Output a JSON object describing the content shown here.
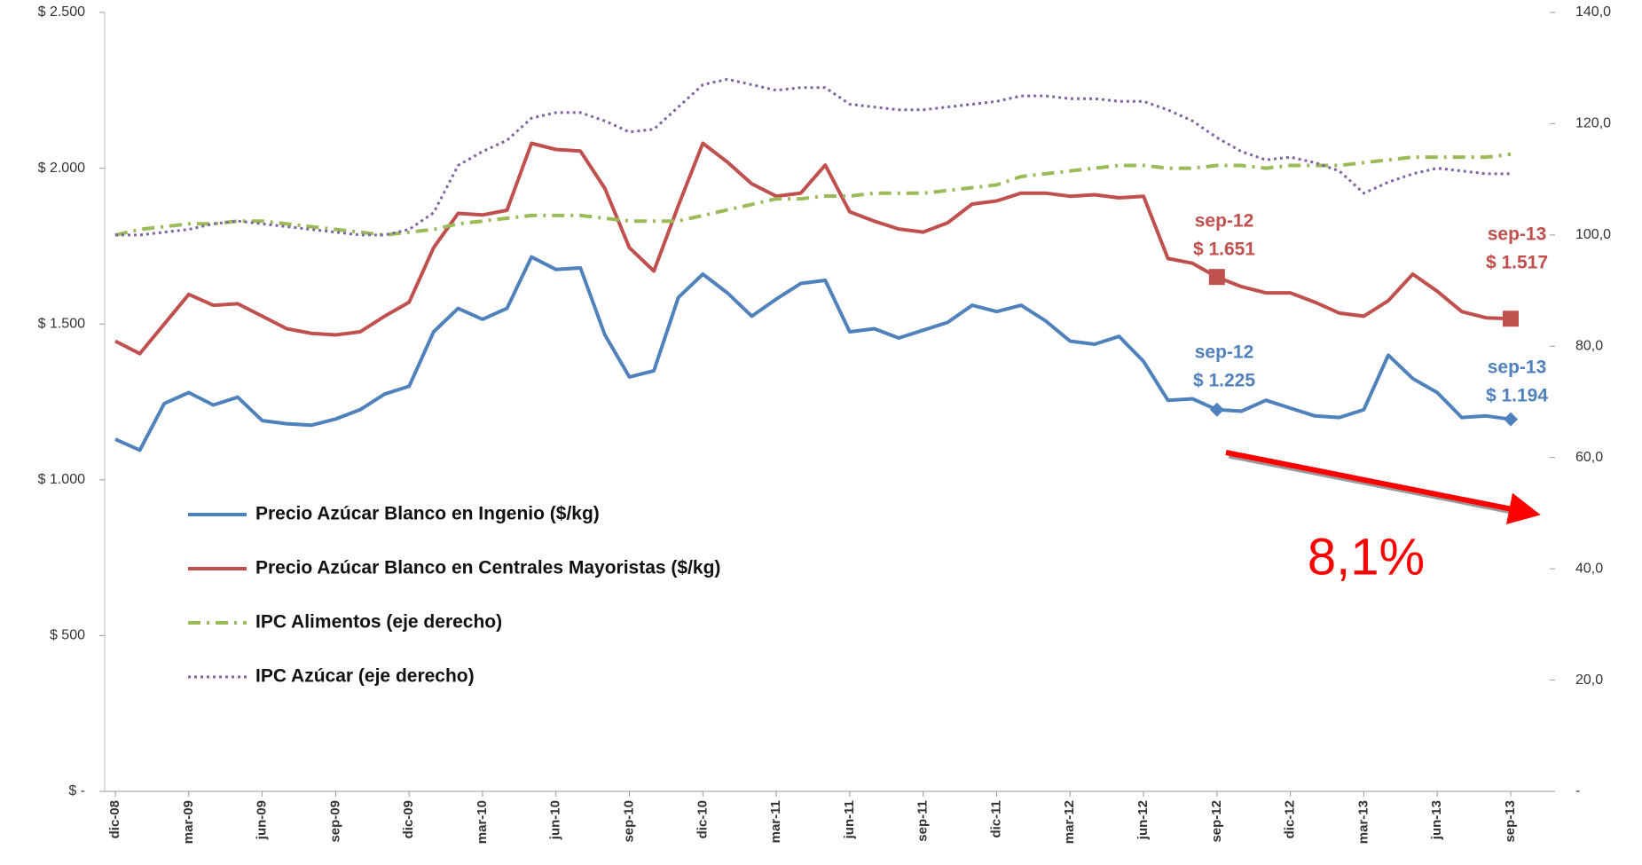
{
  "chart_data": {
    "type": "line",
    "categories": [
      "dic-08",
      null,
      null,
      "mar-09",
      null,
      null,
      "jun-09",
      null,
      null,
      "sep-09",
      null,
      null,
      "dic-09",
      null,
      null,
      "mar-10",
      null,
      null,
      "jun-10",
      null,
      null,
      "sep-10",
      null,
      null,
      "dic-10",
      null,
      null,
      "mar-11",
      null,
      null,
      "jun-11",
      null,
      null,
      "sep-11",
      null,
      null,
      "dic-11",
      null,
      null,
      "mar-12",
      null,
      null,
      "jun-12",
      null,
      null,
      "sep-12",
      null,
      null,
      "dic-12",
      null,
      null,
      "mar-13",
      null,
      null,
      "jun-13",
      null,
      null,
      "sep-13"
    ],
    "series": [
      {
        "name": "Precio Azúcar Blanco en Ingenio ($/kg)",
        "color": "#4f81bd",
        "style": "solid",
        "axis": "y",
        "values": [
          1130,
          1095,
          1245,
          1280,
          1240,
          1265,
          1190,
          1180,
          1175,
          1195,
          1225,
          1275,
          1300,
          1475,
          1550,
          1515,
          1550,
          1715,
          1675,
          1680,
          1465,
          1330,
          1350,
          1585,
          1660,
          1600,
          1525,
          1580,
          1630,
          1640,
          1475,
          1485,
          1455,
          1480,
          1505,
          1560,
          1540,
          1560,
          1510,
          1445,
          1435,
          1460,
          1380,
          1255,
          1260,
          1225,
          1220,
          1255,
          1230,
          1205,
          1200,
          1225,
          1400,
          1325,
          1280,
          1200,
          1205,
          1194
        ]
      },
      {
        "name": "Precio Azúcar Blanco en Centrales Mayoristas ($/kg)",
        "color": "#c0504d",
        "style": "solid",
        "axis": "y",
        "values": [
          1445,
          1405,
          1500,
          1595,
          1560,
          1565,
          1525,
          1485,
          1470,
          1465,
          1475,
          1525,
          1570,
          1745,
          1855,
          1850,
          1865,
          2080,
          2060,
          2055,
          1935,
          1745,
          1670,
          1880,
          2080,
          2020,
          1950,
          1910,
          1920,
          2010,
          1860,
          1830,
          1805,
          1795,
          1825,
          1885,
          1895,
          1920,
          1920,
          1910,
          1915,
          1905,
          1910,
          1710,
          1695,
          1651,
          1620,
          1600,
          1600,
          1570,
          1535,
          1525,
          1575,
          1660,
          1605,
          1540,
          1520,
          1517
        ]
      },
      {
        "name": "IPC Alimentos (eje derecho)",
        "color": "#9bbb59",
        "style": "dashdot",
        "axis": "y2",
        "values": [
          100,
          101,
          101.5,
          102,
          102,
          102.5,
          102.5,
          102,
          101.5,
          101,
          100.5,
          100,
          100.5,
          101,
          102,
          102.5,
          103,
          103.5,
          103.5,
          103.5,
          103,
          102.5,
          102.5,
          102.5,
          103.5,
          104.5,
          105.5,
          106.5,
          106.5,
          107,
          107,
          107.5,
          107.5,
          107.5,
          108,
          108.5,
          109,
          110.5,
          111,
          111.5,
          112,
          112.5,
          112.5,
          112,
          112,
          112.5,
          112.5,
          112,
          112.5,
          112.5,
          112.5,
          113,
          113.5,
          114,
          114,
          114,
          114,
          114.5
        ]
      },
      {
        "name": "IPC Azúcar (eje derecho)",
        "color": "#8064a2",
        "style": "dotted",
        "axis": "y2",
        "values": [
          100,
          100,
          100.5,
          101,
          102,
          102.5,
          102,
          101.5,
          101,
          100.5,
          100,
          100,
          101,
          104,
          112.5,
          115,
          117,
          121,
          122,
          122,
          120.5,
          118.5,
          119,
          123,
          127,
          128,
          127,
          126,
          126.5,
          126.5,
          123.5,
          123,
          122.5,
          122.5,
          123,
          123.5,
          124,
          125,
          125,
          124.5,
          124.5,
          124,
          124,
          122.5,
          120.5,
          117.5,
          115,
          113.5,
          114,
          113,
          111.5,
          107.5,
          109.5,
          111,
          112,
          111.5,
          111,
          111
        ]
      }
    ],
    "ylim": [
      0,
      2500
    ],
    "yticks": [
      {
        "value": 0,
        "label": "$ -"
      },
      {
        "value": 500,
        "label": "$ 500"
      },
      {
        "value": 1000,
        "label": "$ 1.000"
      },
      {
        "value": 1500,
        "label": "$ 1.500"
      },
      {
        "value": 2000,
        "label": "$ 2.000"
      },
      {
        "value": 2500,
        "label": "$ 2.500"
      }
    ],
    "y2lim": [
      0,
      140
    ],
    "y2ticks": [
      {
        "value": 0,
        "label": "-"
      },
      {
        "value": 20,
        "label": "20,0"
      },
      {
        "value": 40,
        "label": "40,0"
      },
      {
        "value": 60,
        "label": "60,0"
      },
      {
        "value": 80,
        "label": "80,0"
      },
      {
        "value": 100,
        "label": "100,0"
      },
      {
        "value": 120,
        "label": "120,0"
      },
      {
        "value": 140,
        "label": "140,0"
      }
    ],
    "annotations": [
      [
        "sep-12",
        "$ 1.651"
      ],
      [
        "sep-13",
        "$ 1.517"
      ],
      [
        "sep-12",
        "$ 1.225"
      ],
      [
        "sep-13",
        "$ 1.194"
      ]
    ],
    "change_label": "8,1%"
  }
}
